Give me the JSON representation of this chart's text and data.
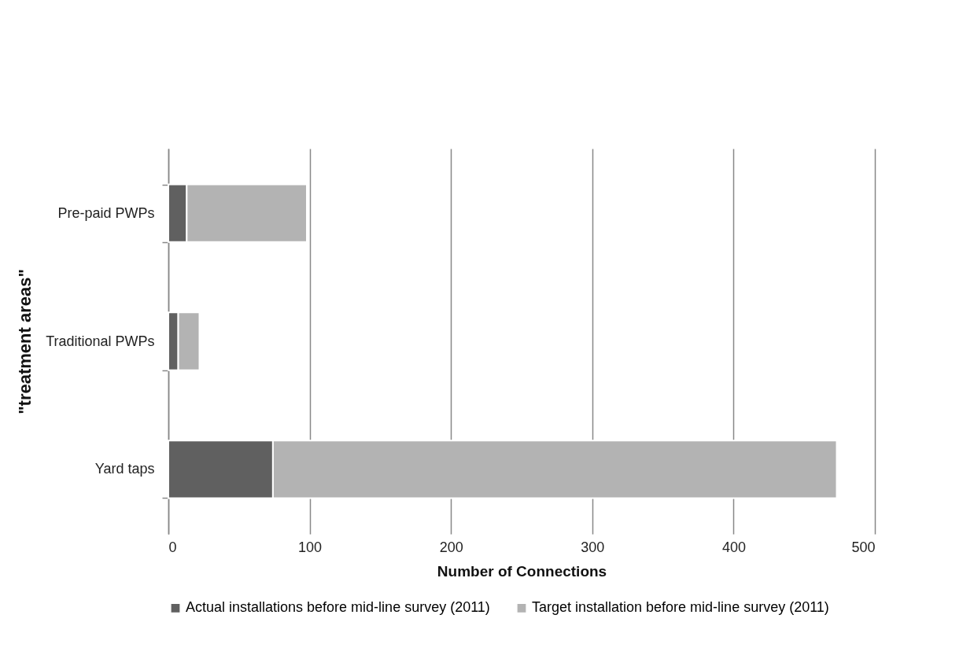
{
  "chart_data": {
    "type": "bar",
    "orientation": "horizontal",
    "stacked": true,
    "categories": [
      "Pre-paid PWPs",
      "Traditional PWPs",
      "Yard taps"
    ],
    "series": [
      {
        "name": "Actual installations before mid-line survey (2011)",
        "color": "#606060",
        "values": [
          13,
          7,
          74
        ]
      },
      {
        "name": "Target installation before mid-line survey (2011)",
        "color": "#b3b3b3",
        "values": [
          85,
          15,
          399
        ]
      }
    ],
    "xlabel": "Number of Connections",
    "ylabel": "\"treatment areas\"",
    "xlim": [
      0,
      500
    ],
    "xticks": [
      0,
      100,
      200,
      300,
      400,
      500
    ],
    "grid": "x",
    "legend": "bottom"
  }
}
